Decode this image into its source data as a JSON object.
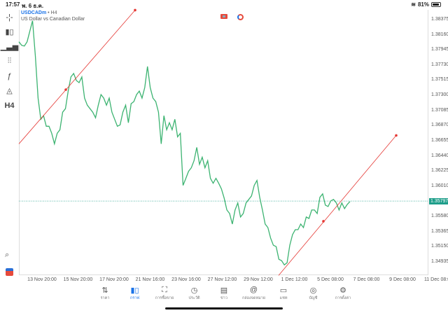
{
  "status": {
    "time": "17:57",
    "date": "พ. 6 ธ.ค.",
    "battery": "81%",
    "battery_level": 0.81
  },
  "symbol": {
    "name": "USDCADm",
    "timeframe": "H4",
    "description": "US Dollar vs Canadian Dollar"
  },
  "toolbar": [
    {
      "icon": "crosshair-icon",
      "glyph": "-¦-"
    },
    {
      "icon": "candlestick-icon",
      "glyph": "▮▯"
    },
    {
      "icon": "volume-bars-icon",
      "glyph": "▁▃▅"
    },
    {
      "icon": "indicators-icon",
      "glyph": "⫶⫶"
    },
    {
      "icon": "function-icon",
      "glyph": "ƒ"
    },
    {
      "icon": "shapes-icon",
      "glyph": "◬"
    },
    {
      "icon": "timeframe-label",
      "glyph": "H4"
    }
  ],
  "colors": {
    "line": "#3cb371",
    "trendline": "#e53935",
    "current_price": "#1e9e8a",
    "accent": "#1a73e8"
  },
  "chart_data": {
    "type": "line",
    "y_ticks": [
      "1.38375",
      "1.38160",
      "1.37945",
      "1.37730",
      "1.37515",
      "1.37300",
      "1.37085",
      "1.36870",
      "1.36655",
      "1.36440",
      "1.36225",
      "1.36010",
      "1.35580",
      "1.35365",
      "1.35150",
      "1.34935"
    ],
    "x_ticks": [
      "13 Nov 20:00",
      "15 Nov 20:00",
      "17 Nov 20:00",
      "21 Nov 16:00",
      "23 Nov 16:00",
      "27 Nov 12:00",
      "29 Nov 12:00",
      "1 Dec 12:00",
      "5 Dec 08:00",
      "7 Dec 08:00",
      "9 Dec 08:00",
      "11 Dec 08:00"
    ],
    "current_price": "1.35797",
    "ylim": [
      1.3474,
      1.3851
    ],
    "values": [
      1.3806,
      1.3801,
      1.38,
      1.3806,
      1.3821,
      1.3836,
      1.3786,
      1.3726,
      1.3696,
      1.3701,
      1.3686,
      1.3686,
      1.3676,
      1.3661,
      1.3676,
      1.3681,
      1.3706,
      1.3711,
      1.3736,
      1.3756,
      1.3761,
      1.3751,
      1.3748,
      1.3756,
      1.3726,
      1.3716,
      1.3711,
      1.3706,
      1.3698,
      1.3716,
      1.3731,
      1.3726,
      1.3716,
      1.3726,
      1.3706,
      1.3696,
      1.3686,
      1.3688,
      1.3706,
      1.3716,
      1.3691,
      1.3718,
      1.3721,
      1.3731,
      1.3736,
      1.3726,
      1.3741,
      1.3771,
      1.3741,
      1.3726,
      1.3721,
      1.3706,
      1.3661,
      1.3701,
      1.3681,
      1.3691,
      1.3681,
      1.3696,
      1.3671,
      1.3676,
      1.3602,
      1.3612,
      1.3622,
      1.3627,
      1.3637,
      1.3656,
      1.3632,
      1.3642,
      1.3627,
      1.3637,
      1.3612,
      1.3605,
      1.3612,
      1.3605,
      1.3597,
      1.3584,
      1.3567,
      1.3562,
      1.3547,
      1.3567,
      1.3577,
      1.3557,
      1.3562,
      1.3577,
      1.3582,
      1.3587,
      1.3602,
      1.3609,
      1.3585,
      1.3567,
      1.3547,
      1.3542,
      1.3527,
      1.3517,
      1.3515,
      1.3497,
      1.3495,
      1.3489,
      1.3492,
      1.3517,
      1.3532,
      1.3539,
      1.3539,
      1.3547,
      1.3542,
      1.3557,
      1.3555,
      1.3567,
      1.3567,
      1.3562,
      1.3585,
      1.359,
      1.3574,
      1.3572,
      1.358,
      1.3582,
      1.3577,
      1.3567,
      1.3577,
      1.3569,
      1.3575,
      1.3579
    ],
    "trendlines": [
      {
        "start": 1.3661,
        "anchor": 1.3738,
        "end": 1.3851
      },
      {
        "start": 1.3474,
        "anchor": 1.3551,
        "end": 1.3673
      }
    ]
  },
  "nav": [
    {
      "label": "ราคา",
      "glyph": "⇅",
      "icon": "quotes-icon"
    },
    {
      "label": "กราฟ",
      "glyph": "▮▯",
      "icon": "chart-icon",
      "active": true
    },
    {
      "label": "การซื้อขาย",
      "glyph": "⛶",
      "icon": "trade-icon"
    },
    {
      "label": "ประวัติ",
      "glyph": "◷",
      "icon": "history-icon"
    },
    {
      "label": "ข่าว",
      "glyph": "▤",
      "icon": "news-icon"
    },
    {
      "label": "กล่องจดหมาย",
      "glyph": "@",
      "icon": "mailbox-icon"
    },
    {
      "label": "แชท",
      "glyph": "▭",
      "icon": "chat-icon"
    },
    {
      "label": "บัญชี",
      "glyph": "◎",
      "icon": "account-icon"
    },
    {
      "label": "การตั้งค่า",
      "glyph": "⚙",
      "icon": "settings-icon"
    }
  ]
}
